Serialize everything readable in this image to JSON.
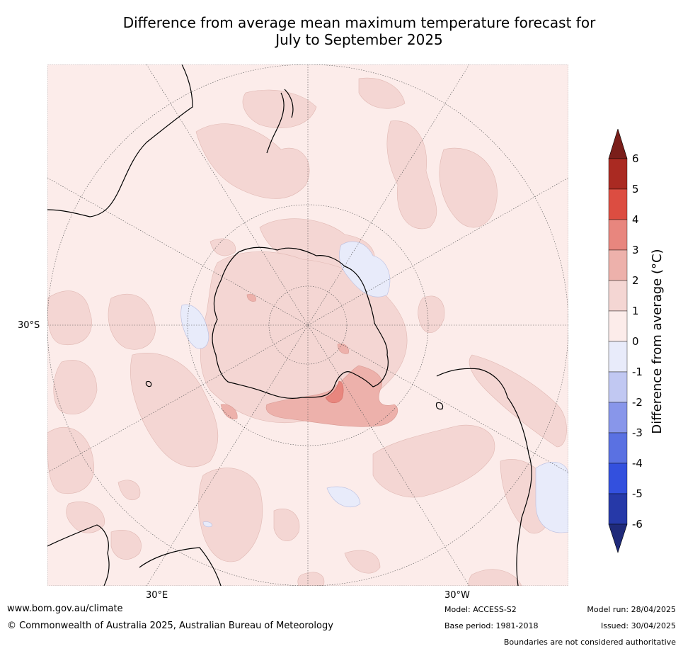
{
  "title_line1": "Difference from average mean maximum temperature forecast for",
  "title_line2": "July to September 2025",
  "map": {
    "projection": "south-polar stereographic",
    "labels": {
      "lat_30s": "30°S",
      "lon_30e": "30°E",
      "lon_30w": "30°W"
    },
    "colors": {
      "background_0_1": "#fcecea",
      "anomaly_1_2": "#f4d6d3",
      "anomaly_2_3": "#edb1ab",
      "anomaly_3_4": "#e8867e",
      "anomaly_neg1_0": "#e8ebfa",
      "coast": "#000000",
      "graticule": "#555555"
    }
  },
  "colorbar": {
    "title": "Difference from average (°C)",
    "ticks": [
      "6",
      "5",
      "4",
      "3",
      "2",
      "1",
      "0",
      "-1",
      "-2",
      "-3",
      "-4",
      "-5",
      "-6"
    ],
    "colors": [
      "#7a1e1a",
      "#aa2a22",
      "#dc4d41",
      "#e8867e",
      "#edb1ab",
      "#f4d6d3",
      "#fcecea",
      "#e8ebfa",
      "#c1c8f2",
      "#8896ea",
      "#5a71e2",
      "#3350de",
      "#2639a8",
      "#1f2a7a"
    ]
  },
  "footer": {
    "website": "www.bom.gov.au/climate",
    "copyright": "© Commonwealth of Australia 2025, Australian Bureau of Meteorology",
    "model": "Model: ACCESS-S2",
    "base_period": "Base period: 1981-2018",
    "model_run": "Model run: 28/04/2025",
    "issued": "Issued: 30/04/2025",
    "disclaimer": "Boundaries are not considered authoritative"
  }
}
